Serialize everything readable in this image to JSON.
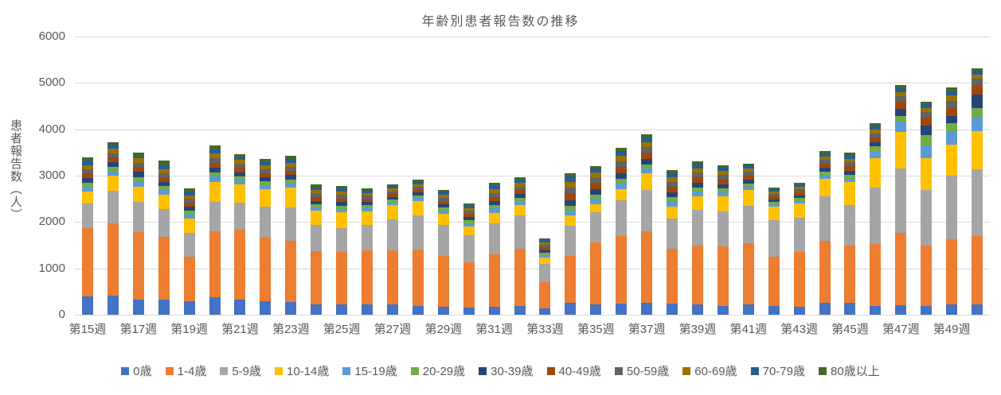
{
  "chart": {
    "title": "年齢別患者報告数の推移",
    "y_axis_title": "患者報告数（人）"
  },
  "chart_data": {
    "type": "bar",
    "stacked": true,
    "title": "年齢別患者報告数の推移",
    "xlabel": "",
    "ylabel": "患者報告数（人）",
    "ylim": [
      0,
      6000
    ],
    "y_ticks": [
      0,
      1000,
      2000,
      3000,
      4000,
      5000,
      6000
    ],
    "grid": true,
    "legend_position": "bottom",
    "text_color": "#595959",
    "gridline_color": "#d9d9d9",
    "categories": [
      "第15週",
      "第16週",
      "第17週",
      "第18週",
      "第19週",
      "第20週",
      "第21週",
      "第22週",
      "第23週",
      "第24週",
      "第25週",
      "第26週",
      "第27週",
      "第28週",
      "第29週",
      "第30週",
      "第31週",
      "第32週",
      "第33週",
      "第34週",
      "第35週",
      "第36週",
      "第37週",
      "第38週",
      "第39週",
      "第40週",
      "第41週",
      "第42週",
      "第43週",
      "第44週",
      "第45週",
      "第46週",
      "第47週",
      "第48週",
      "第49週",
      "第50週"
    ],
    "x_tick_labels_shown": [
      "第15週",
      "第17週",
      "第19週",
      "第21週",
      "第23週",
      "第25週",
      "第27週",
      "第29週",
      "第31週",
      "第33週",
      "第35週",
      "第37週",
      "第39週",
      "第41週",
      "第43週",
      "第45週",
      "第47週",
      "第49週"
    ],
    "series": [
      {
        "name": "0歳",
        "color": "#4472C4",
        "values": [
          390,
          420,
          330,
          320,
          300,
          370,
          330,
          285,
          275,
          230,
          220,
          220,
          230,
          190,
          170,
          160,
          170,
          190,
          130,
          265,
          220,
          245,
          265,
          245,
          215,
          190,
          215,
          190,
          170,
          265,
          265,
          190,
          200,
          190,
          230,
          215
        ]
      },
      {
        "name": "1-4歳",
        "color": "#ED7D31",
        "values": [
          1480,
          1560,
          1460,
          1360,
          960,
          1430,
          1500,
          1370,
          1325,
          1140,
          1130,
          1170,
          1160,
          1215,
          1100,
          980,
          1140,
          1230,
          570,
          1000,
          1340,
          1445,
          1540,
          1170,
          1285,
          1285,
          1325,
          1070,
          1190,
          1325,
          1220,
          1340,
          1560,
          1300,
          1405,
          1485
        ]
      },
      {
        "name": "5-9歳",
        "color": "#A5A5A5",
        "values": [
          530,
          690,
          640,
          600,
          510,
          640,
          590,
          685,
          720,
          570,
          525,
          545,
          670,
          740,
          660,
          570,
          660,
          730,
          400,
          650,
          645,
          780,
          885,
          655,
          760,
          755,
          815,
          775,
          740,
          960,
          875,
          1210,
          1400,
          1200,
          1370,
          1440
        ]
      },
      {
        "name": "10-14歳",
        "color": "#FFC000",
        "values": [
          250,
          330,
          330,
          315,
          300,
          430,
          385,
          375,
          420,
          300,
          330,
          300,
          300,
          310,
          240,
          200,
          230,
          210,
          130,
          220,
          185,
          245,
          355,
          270,
          300,
          320,
          330,
          295,
          295,
          380,
          495,
          630,
          780,
          685,
          670,
          815
        ]
      },
      {
        "name": "15-19歳",
        "color": "#5B9BD5",
        "values": [
          110,
          80,
          100,
          90,
          90,
          110,
          90,
          85,
          95,
          75,
          80,
          70,
          65,
          65,
          75,
          70,
          90,
          85,
          60,
          110,
          105,
          110,
          105,
          100,
          95,
          90,
          75,
          55,
          65,
          80,
          85,
          170,
          230,
          285,
          285,
          300
        ]
      },
      {
        "name": "20-29歳",
        "color": "#70AD47",
        "values": [
          90,
          115,
          105,
          85,
          80,
          95,
          85,
          80,
          85,
          70,
          70,
          60,
          55,
          55,
          65,
          60,
          80,
          75,
          50,
          100,
          95,
          100,
          95,
          90,
          85,
          80,
          70,
          50,
          55,
          75,
          80,
          90,
          115,
          215,
          170,
          195
        ]
      },
      {
        "name": "30-39歳",
        "color": "#264478",
        "values": [
          100,
          105,
          115,
          95,
          85,
          100,
          90,
          85,
          90,
          75,
          75,
          65,
          60,
          60,
          70,
          65,
          85,
          80,
          55,
          130,
          120,
          125,
          120,
          110,
          105,
          95,
          80,
          55,
          60,
          80,
          85,
          95,
          150,
          200,
          155,
          300
        ]
      },
      {
        "name": "40-49歳",
        "color": "#9E480E",
        "values": [
          100,
          90,
          105,
          100,
          90,
          105,
          95,
          90,
          95,
          80,
          80,
          70,
          65,
          65,
          75,
          70,
          90,
          85,
          60,
          140,
          130,
          135,
          130,
          120,
          115,
          105,
          90,
          65,
          70,
          90,
          95,
          95,
          160,
          190,
          170,
          210
        ]
      },
      {
        "name": "50-59歳",
        "color": "#636363",
        "values": [
          90,
          95,
          95,
          85,
          85,
          100,
          90,
          85,
          90,
          75,
          75,
          65,
          60,
          60,
          70,
          65,
          85,
          80,
          55,
          130,
          120,
          125,
          120,
          110,
          105,
          95,
          80,
          55,
          60,
          80,
          85,
          85,
          115,
          110,
          150,
          130
        ]
      },
      {
        "name": "60-69歳",
        "color": "#997300",
        "values": [
          90,
          90,
          95,
          85,
          80,
          95,
          85,
          80,
          85,
          70,
          70,
          60,
          55,
          55,
          65,
          60,
          80,
          75,
          50,
          120,
          110,
          115,
          110,
          100,
          95,
          85,
          75,
          50,
          55,
          75,
          80,
          85,
          90,
          85,
          125,
          95
        ]
      },
      {
        "name": "70-79歳",
        "color": "#255E91",
        "values": [
          90,
          90,
          40,
          90,
          75,
          95,
          50,
          75,
          80,
          65,
          65,
          55,
          50,
          50,
          60,
          55,
          75,
          70,
          45,
          110,
          80,
          105,
          100,
          90,
          85,
          75,
          65,
          45,
          50,
          65,
          70,
          75,
          90,
          75,
          85,
          75
        ]
      },
      {
        "name": "80歳以上",
        "color": "#43682B",
        "values": [
          80,
          60,
          75,
          95,
          65,
          80,
          65,
          60,
          70,
          55,
          55,
          45,
          45,
          45,
          50,
          45,
          60,
          55,
          35,
          85,
          50,
          75,
          70,
          65,
          65,
          55,
          40,
          35,
          40,
          50,
          55,
          70,
          60,
          55,
          95,
          55
        ]
      }
    ]
  }
}
